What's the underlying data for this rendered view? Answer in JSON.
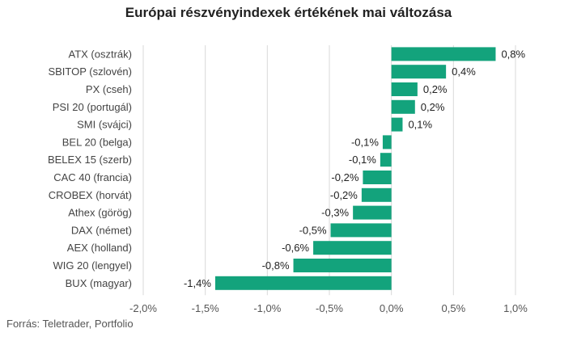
{
  "chart_data": {
    "type": "bar",
    "orientation": "horizontal",
    "title": "Európai részvényindexek értékének mai változása",
    "categories": [
      "ATX (osztrák)",
      "SBITOP (szlovén)",
      "PX (cseh)",
      "PSI 20 (portugál)",
      "SMI (svájci)",
      "BEL 20 (belga)",
      "BELEX 15 (szerb)",
      "CAC 40 (francia)",
      "CROBEX (horvát)",
      "Athex (görög)",
      "DAX (német)",
      "AEX (holland)",
      "WIG 20 (lengyel)",
      "BUX (magyar)"
    ],
    "values": [
      0.84,
      0.44,
      0.21,
      0.19,
      0.09,
      -0.07,
      -0.09,
      -0.23,
      -0.24,
      -0.31,
      -0.49,
      -0.63,
      -0.79,
      -1.42
    ],
    "value_labels": [
      "0,8%",
      "0,4%",
      "0,2%",
      "0,2%",
      "0,1%",
      "-0,1%",
      "-0,1%",
      "-0,2%",
      "-0,2%",
      "-0,3%",
      "-0,5%",
      "-0,6%",
      "-0,8%",
      "-1,4%"
    ],
    "xlim": [
      -2.0,
      1.0
    ],
    "x_ticks": [
      -2.0,
      -1.5,
      -1.0,
      -0.5,
      0.0,
      0.5,
      1.0
    ],
    "x_tick_labels": [
      "-2,0%",
      "-1,5%",
      "-1,0%",
      "-0,5%",
      "0,0%",
      "0,5%",
      "1,0%"
    ],
    "grid": true,
    "bar_color": "#13a37c",
    "grid_color": "#d9d9d9"
  },
  "source": "Forrás: Teletrader, Portfolio"
}
